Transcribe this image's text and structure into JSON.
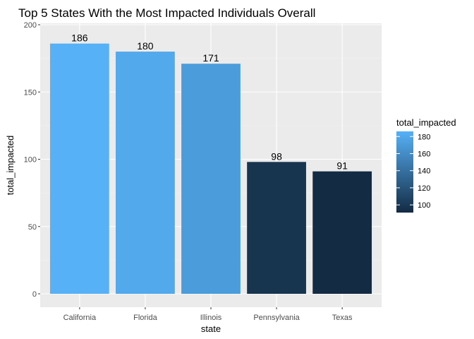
{
  "chart_data": {
    "type": "bar",
    "title": "Top 5 States With the Most Impacted Individuals Overall",
    "xlabel": "state",
    "ylabel": "total_impacted",
    "categories": [
      "California",
      "Florida",
      "Illinois",
      "Pennsylvania",
      "Texas"
    ],
    "values": [
      186,
      180,
      171,
      98,
      91
    ],
    "data_labels": [
      "186",
      "180",
      "171",
      "98",
      "91"
    ],
    "ylim": [
      0,
      200
    ],
    "yticks": [
      0,
      50,
      100,
      150,
      200
    ],
    "ytick_labels": [
      "0",
      "50",
      "100",
      "150",
      "200"
    ],
    "grid": true,
    "legend": {
      "title": "total_impacted",
      "placement": "right",
      "range": [
        91,
        186
      ],
      "ticks": [
        100,
        120,
        140,
        160,
        180
      ],
      "tick_labels": [
        "100",
        "120",
        "140",
        "160",
        "180"
      ],
      "color_low": "#132B43",
      "color_high": "#56B1F7"
    }
  },
  "colors": {
    "panel_background": "#EBEBEB",
    "grid_major": "#FFFFFF",
    "grid_minor": "#F5F5F5"
  }
}
